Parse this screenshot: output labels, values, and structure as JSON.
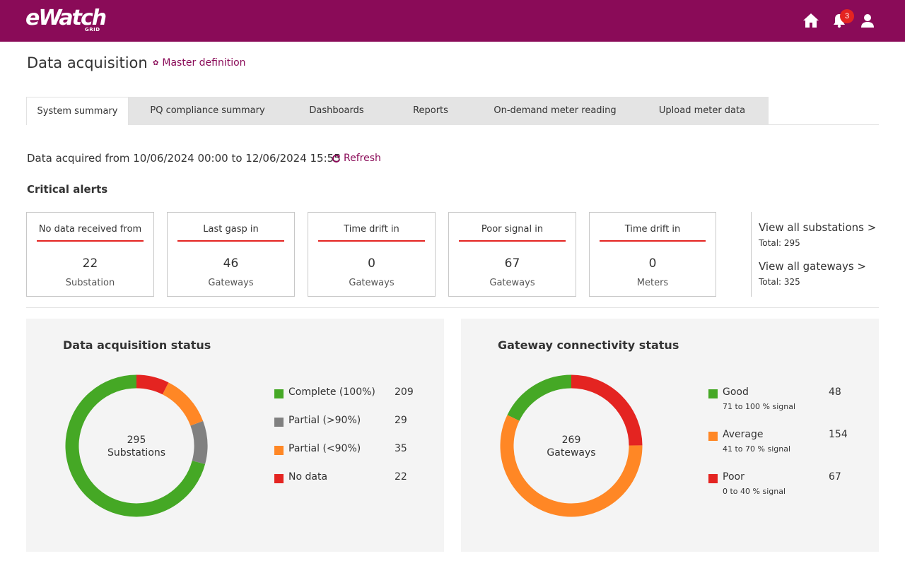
{
  "header": {
    "logo_text": "eWatch",
    "logo_sub": "GRID",
    "notification_count": "3",
    "icons": [
      "home-icon",
      "bell-icon",
      "user-icon"
    ]
  },
  "page": {
    "title": "Data acquisition",
    "master_link": "Master definition"
  },
  "tabs": [
    {
      "label": "System summary",
      "active": true
    },
    {
      "label": "PQ compliance summary"
    },
    {
      "label": "Dashboards"
    },
    {
      "label": "Reports"
    },
    {
      "label": "On-demand meter reading"
    },
    {
      "label": "Upload meter data"
    }
  ],
  "acquisition": {
    "range_text": "Data acquired from 10/06/2024 00:00 to 12/06/2024 15:55",
    "refresh_label": "Refresh"
  },
  "critical_alerts": {
    "title": "Critical alerts",
    "cards": [
      {
        "label": "No data received from",
        "value": "22",
        "unit": "Substation"
      },
      {
        "label": "Last gasp in",
        "value": "46",
        "unit": "Gateways"
      },
      {
        "label": "Time drift in",
        "value": "0",
        "unit": "Gateways"
      },
      {
        "label": "Poor signal in",
        "value": "67",
        "unit": "Gateways"
      },
      {
        "label": "Time drift in",
        "value": "0",
        "unit": "Meters"
      }
    ],
    "links": [
      {
        "label": "View all substations >",
        "total": "Total: 295"
      },
      {
        "label": "View all gateways >",
        "total": "Total: 325"
      }
    ]
  },
  "colors": {
    "brand": "#8a0b58",
    "alert_red": "#e42421",
    "green": "#45a825",
    "grey": "#808080",
    "orange": "#ff8725",
    "red": "#e42421"
  },
  "chart_data": [
    {
      "type": "pie",
      "title": "Data acquisition status",
      "center_value": "295",
      "center_label": "Substations",
      "series": [
        {
          "name": "Complete (100%)",
          "value": 209,
          "color": "#45a825"
        },
        {
          "name": "Partial (>90%)",
          "value": 29,
          "color": "#808080"
        },
        {
          "name": "Partial (<90%)",
          "value": 35,
          "color": "#ff8725"
        },
        {
          "name": "No data",
          "value": 22,
          "color": "#e42421"
        }
      ],
      "draw_order": [
        3,
        2,
        1,
        0
      ]
    },
    {
      "type": "pie",
      "title": "Gateway connectivity status",
      "center_value": "269",
      "center_label": "Gateways",
      "series": [
        {
          "name": "Good",
          "sub": "71 to 100 % signal",
          "value": 48,
          "color": "#45a825"
        },
        {
          "name": "Average",
          "sub": "41 to 70 % signal",
          "value": 154,
          "color": "#ff8725"
        },
        {
          "name": "Poor",
          "sub": "0 to 40 % signal",
          "value": 67,
          "color": "#e42421"
        }
      ],
      "draw_order": [
        2,
        1,
        0
      ]
    }
  ]
}
